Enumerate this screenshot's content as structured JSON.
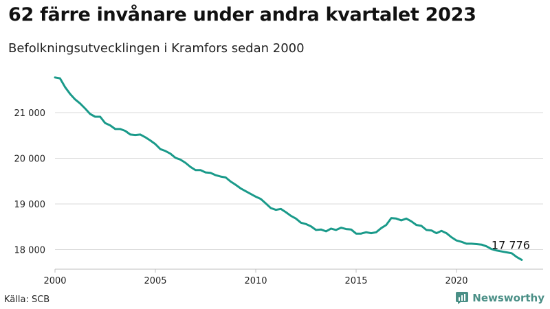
{
  "title": "62 färre invånare under andra kvartalet 2023",
  "subtitle": "Befolkningsutvecklingen i Kramfors sedan 2000",
  "source": "Källa: SCB",
  "brand": {
    "name": "Newsworthy",
    "color": "#4a8f86"
  },
  "chart_data": {
    "type": "line",
    "title": "62 färre invånare under andra kvartalet 2023",
    "subtitle": "Befolkningsutvecklingen i Kramfors sedan 2000",
    "line_color": "#1a9a8a",
    "grid": true,
    "ylim": [
      17700,
      21850
    ],
    "xlim": [
      2000,
      2023.6
    ],
    "yticks": [
      {
        "value": 18000,
        "label": "18 000"
      },
      {
        "value": 19000,
        "label": "19 000"
      },
      {
        "value": 20000,
        "label": "20 000"
      },
      {
        "value": 21000,
        "label": "21 000"
      }
    ],
    "xticks": [
      {
        "value": 2000,
        "label": "2000"
      },
      {
        "value": 2005,
        "label": "2005"
      },
      {
        "value": 2010,
        "label": "2010"
      },
      {
        "value": 2015,
        "label": "2015"
      },
      {
        "value": 2020,
        "label": "2020"
      }
    ],
    "end_label": "17 776",
    "series": [
      {
        "values": [
          [
            2000.0,
            21770
          ],
          [
            2000.25,
            21750
          ],
          [
            2000.5,
            21560
          ],
          [
            2000.75,
            21410
          ],
          [
            2001.0,
            21290
          ],
          [
            2001.25,
            21200
          ],
          [
            2001.5,
            21090
          ],
          [
            2001.75,
            20970
          ],
          [
            2002.0,
            20910
          ],
          [
            2002.25,
            20910
          ],
          [
            2002.5,
            20770
          ],
          [
            2002.75,
            20720
          ],
          [
            2003.0,
            20640
          ],
          [
            2003.25,
            20640
          ],
          [
            2003.5,
            20600
          ],
          [
            2003.75,
            20520
          ],
          [
            2004.0,
            20510
          ],
          [
            2004.25,
            20520
          ],
          [
            2004.5,
            20460
          ],
          [
            2004.75,
            20390
          ],
          [
            2005.0,
            20310
          ],
          [
            2005.25,
            20200
          ],
          [
            2005.5,
            20160
          ],
          [
            2005.75,
            20100
          ],
          [
            2006.0,
            20010
          ],
          [
            2006.25,
            19970
          ],
          [
            2006.5,
            19900
          ],
          [
            2006.75,
            19810
          ],
          [
            2007.0,
            19740
          ],
          [
            2007.25,
            19740
          ],
          [
            2007.5,
            19690
          ],
          [
            2007.75,
            19680
          ],
          [
            2008.0,
            19630
          ],
          [
            2008.25,
            19600
          ],
          [
            2008.5,
            19580
          ],
          [
            2008.75,
            19490
          ],
          [
            2009.0,
            19420
          ],
          [
            2009.25,
            19340
          ],
          [
            2009.5,
            19280
          ],
          [
            2009.75,
            19220
          ],
          [
            2010.0,
            19160
          ],
          [
            2010.25,
            19110
          ],
          [
            2010.5,
            19010
          ],
          [
            2010.75,
            18910
          ],
          [
            2011.0,
            18870
          ],
          [
            2011.25,
            18890
          ],
          [
            2011.5,
            18820
          ],
          [
            2011.75,
            18740
          ],
          [
            2012.0,
            18680
          ],
          [
            2012.25,
            18590
          ],
          [
            2012.5,
            18560
          ],
          [
            2012.75,
            18510
          ],
          [
            2013.0,
            18430
          ],
          [
            2013.25,
            18440
          ],
          [
            2013.5,
            18400
          ],
          [
            2013.75,
            18460
          ],
          [
            2014.0,
            18430
          ],
          [
            2014.25,
            18480
          ],
          [
            2014.5,
            18450
          ],
          [
            2014.75,
            18440
          ],
          [
            2015.0,
            18350
          ],
          [
            2015.25,
            18350
          ],
          [
            2015.5,
            18380
          ],
          [
            2015.75,
            18360
          ],
          [
            2016.0,
            18380
          ],
          [
            2016.25,
            18470
          ],
          [
            2016.5,
            18540
          ],
          [
            2016.75,
            18690
          ],
          [
            2017.0,
            18680
          ],
          [
            2017.25,
            18640
          ],
          [
            2017.5,
            18680
          ],
          [
            2017.75,
            18620
          ],
          [
            2018.0,
            18540
          ],
          [
            2018.25,
            18520
          ],
          [
            2018.5,
            18430
          ],
          [
            2018.75,
            18420
          ],
          [
            2019.0,
            18360
          ],
          [
            2019.25,
            18410
          ],
          [
            2019.5,
            18360
          ],
          [
            2019.75,
            18270
          ],
          [
            2020.0,
            18200
          ],
          [
            2020.25,
            18170
          ],
          [
            2020.5,
            18130
          ],
          [
            2020.75,
            18130
          ],
          [
            2021.0,
            18120
          ],
          [
            2021.25,
            18110
          ],
          [
            2021.5,
            18070
          ],
          [
            2021.75,
            18010
          ],
          [
            2022.0,
            17980
          ],
          [
            2022.25,
            17960
          ],
          [
            2022.5,
            17940
          ],
          [
            2022.75,
            17920
          ],
          [
            2023.0,
            17838
          ],
          [
            2023.25,
            17776
          ]
        ]
      }
    ]
  }
}
